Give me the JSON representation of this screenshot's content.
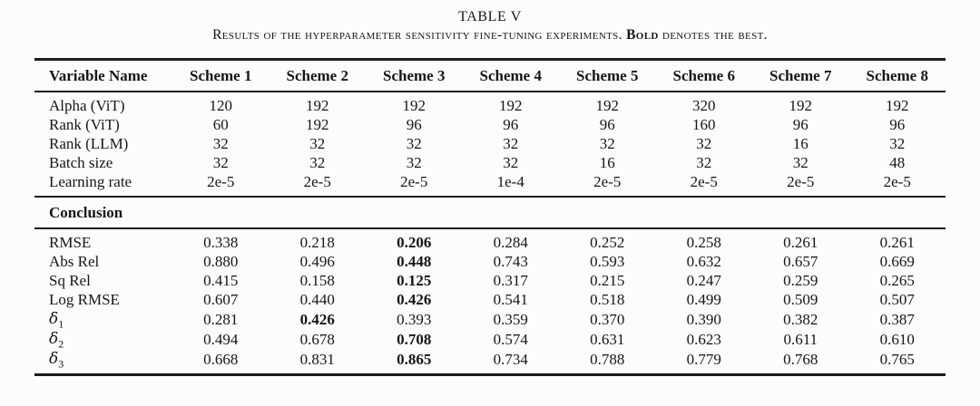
{
  "page": {
    "title": "TABLE V",
    "caption": {
      "before_bold": "Results of the hyperparameter sensitivity fine-tuning experiments. ",
      "bold_word": "Bold",
      "after_bold": " denotes the best."
    }
  },
  "table": {
    "columns": [
      "Variable Name",
      "Scheme 1",
      "Scheme 2",
      "Scheme 3",
      "Scheme 4",
      "Scheme 5",
      "Scheme 6",
      "Scheme 7",
      "Scheme 8"
    ],
    "hyperparameters": [
      {
        "label": "Alpha (ViT)",
        "values": [
          "120",
          "192",
          "192",
          "192",
          "192",
          "320",
          "192",
          "192"
        ]
      },
      {
        "label": "Rank (ViT)",
        "values": [
          "60",
          "192",
          "96",
          "96",
          "96",
          "160",
          "96",
          "96"
        ]
      },
      {
        "label": "Rank (LLM)",
        "values": [
          "32",
          "32",
          "32",
          "32",
          "32",
          "32",
          "16",
          "32"
        ]
      },
      {
        "label": "Batch size",
        "values": [
          "32",
          "32",
          "32",
          "32",
          "16",
          "32",
          "32",
          "48"
        ]
      },
      {
        "label": "Learning rate",
        "values": [
          "2e-5",
          "2e-5",
          "2e-5",
          "1e-4",
          "2e-5",
          "2e-5",
          "2e-5",
          "2e-5"
        ]
      }
    ],
    "section_header": "Conclusion",
    "metrics": [
      {
        "label": "RMSE",
        "sub": "",
        "values": [
          "0.338",
          "0.218",
          "0.206",
          "0.284",
          "0.252",
          "0.258",
          "0.261",
          "0.261"
        ],
        "bold_index": 2
      },
      {
        "label": "Abs Rel",
        "sub": "",
        "values": [
          "0.880",
          "0.496",
          "0.448",
          "0.743",
          "0.593",
          "0.632",
          "0.657",
          "0.669"
        ],
        "bold_index": 2
      },
      {
        "label": "Sq Rel",
        "sub": "",
        "values": [
          "0.415",
          "0.158",
          "0.125",
          "0.317",
          "0.215",
          "0.247",
          "0.259",
          "0.265"
        ],
        "bold_index": 2
      },
      {
        "label": "Log RMSE",
        "sub": "",
        "values": [
          "0.607",
          "0.440",
          "0.426",
          "0.541",
          "0.518",
          "0.499",
          "0.509",
          "0.507"
        ],
        "bold_index": 2
      },
      {
        "label": "δ",
        "sub": "1",
        "values": [
          "0.281",
          "0.426",
          "0.393",
          "0.359",
          "0.370",
          "0.390",
          "0.382",
          "0.387"
        ],
        "bold_index": 1
      },
      {
        "label": "δ",
        "sub": "2",
        "values": [
          "0.494",
          "0.678",
          "0.708",
          "0.574",
          "0.631",
          "0.623",
          "0.611",
          "0.610"
        ],
        "bold_index": 2
      },
      {
        "label": "δ",
        "sub": "3",
        "values": [
          "0.668",
          "0.831",
          "0.865",
          "0.734",
          "0.788",
          "0.779",
          "0.768",
          "0.765"
        ],
        "bold_index": 2
      }
    ]
  }
}
